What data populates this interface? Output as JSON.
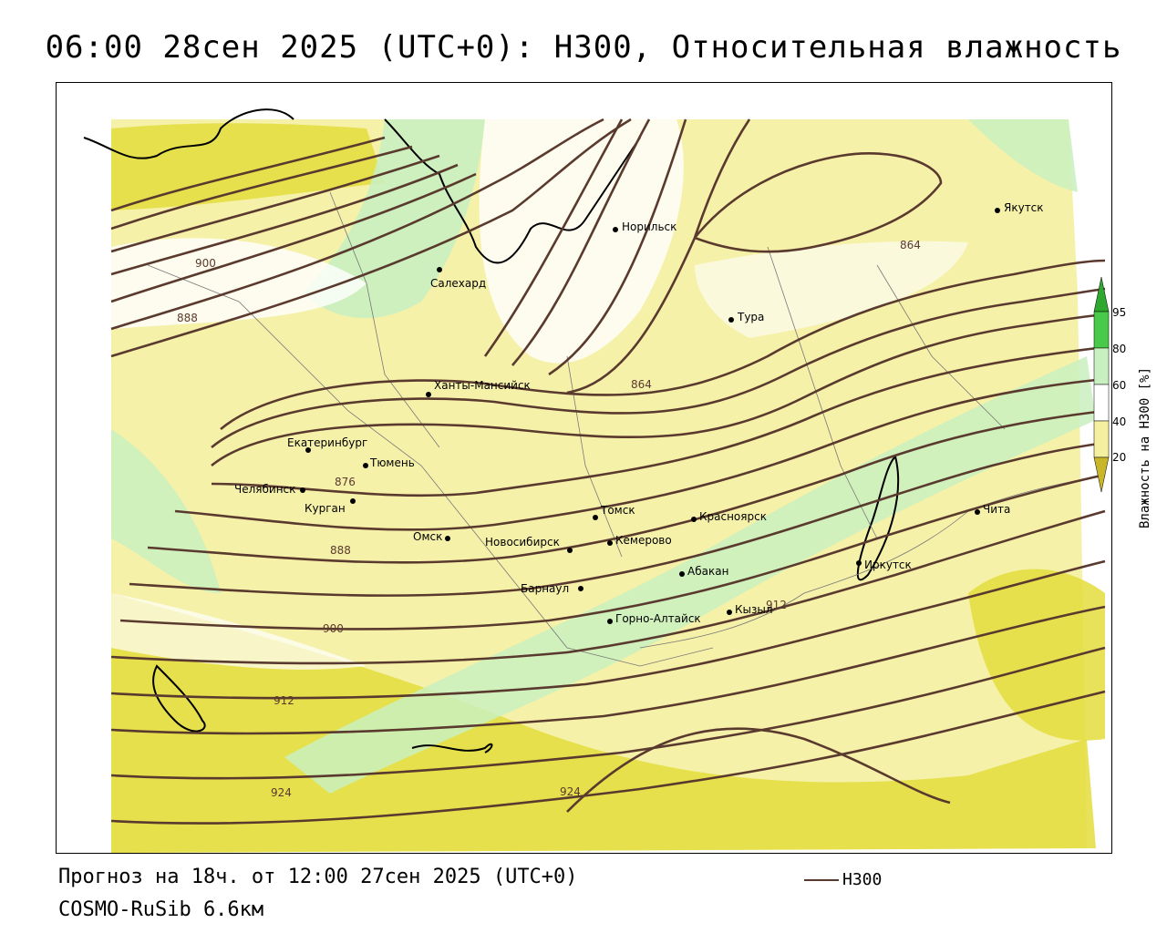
{
  "title": "06:00 28сен 2025 (UTC+0): H300, Относительная влажность",
  "forecast_line": "Прогноз на 18ч. от 12:00 27сен 2025 (UTC+0)",
  "model_line": "COSMO-RuSib 6.6км",
  "contour_legend_label": "H300",
  "colors": {
    "contour": "#5a3a2e",
    "humidity_20": "#e3dd3c",
    "humidity_40": "#f5f0a0",
    "humidity_60": "#c9f0c0",
    "humidity_80": "#8ee48a",
    "humidity_95": "#2fa82f"
  },
  "legend": {
    "title": "Влажность на H300 [%]",
    "ticks": [
      "95",
      "80",
      "60",
      "40",
      "20"
    ]
  },
  "cities": [
    {
      "name": "Якутск"
    },
    {
      "name": "Норильск"
    },
    {
      "name": "Салехард"
    },
    {
      "name": "Тура"
    },
    {
      "name": "Ханты-Мансийск"
    },
    {
      "name": "Екатеринбург"
    },
    {
      "name": "Тюмень"
    },
    {
      "name": "Челябинск"
    },
    {
      "name": "Курган"
    },
    {
      "name": "Омск"
    },
    {
      "name": "Новосибирск"
    },
    {
      "name": "Томск"
    },
    {
      "name": "Кемерово"
    },
    {
      "name": "Красноярск"
    },
    {
      "name": "Абакан"
    },
    {
      "name": "Барнаул"
    },
    {
      "name": "Горно-Алтайск"
    },
    {
      "name": "Кызыл"
    },
    {
      "name": "Иркутск"
    },
    {
      "name": "Чита"
    }
  ],
  "isoline_labels": [
    "900",
    "888",
    "864",
    "864",
    "876",
    "888",
    "900",
    "912",
    "912",
    "924",
    "924"
  ]
}
